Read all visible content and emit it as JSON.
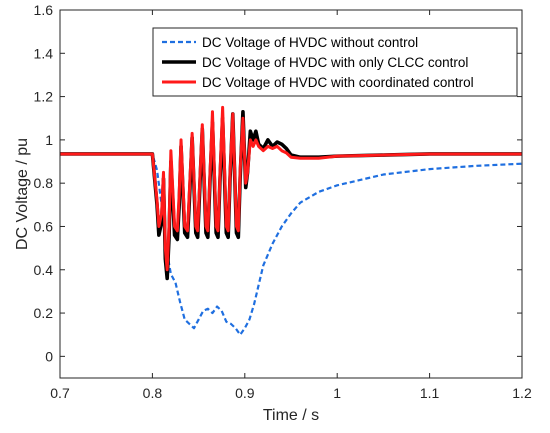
{
  "chart_data": {
    "type": "line",
    "title": "",
    "xlabel": "Time / s",
    "ylabel": "DC Voltage / pu",
    "xlim": [
      0.7,
      1.2
    ],
    "ylim": [
      -0.1,
      1.6
    ],
    "x_ticks": [
      "0.7",
      "0.8",
      "0.9",
      "1",
      "1.1",
      "1.2"
    ],
    "y_ticks": [
      "0",
      "0.2",
      "0.4",
      "0.6",
      "0.8",
      "1",
      "1.2",
      "1.4",
      "1.6"
    ],
    "grid": false,
    "legend_position": "top-right",
    "series": [
      {
        "name": "DC Voltage of HVDC without control",
        "color": "#1f6fe0",
        "style": "dashed",
        "points": [
          [
            0.7,
            0.935
          ],
          [
            0.8,
            0.935
          ],
          [
            0.805,
            0.86
          ],
          [
            0.81,
            0.7
          ],
          [
            0.815,
            0.5
          ],
          [
            0.82,
            0.38
          ],
          [
            0.825,
            0.34
          ],
          [
            0.83,
            0.25
          ],
          [
            0.835,
            0.17
          ],
          [
            0.84,
            0.15
          ],
          [
            0.845,
            0.13
          ],
          [
            0.85,
            0.17
          ],
          [
            0.855,
            0.21
          ],
          [
            0.86,
            0.22
          ],
          [
            0.865,
            0.2
          ],
          [
            0.87,
            0.23
          ],
          [
            0.875,
            0.21
          ],
          [
            0.88,
            0.16
          ],
          [
            0.885,
            0.15
          ],
          [
            0.89,
            0.13
          ],
          [
            0.895,
            0.1
          ],
          [
            0.9,
            0.13
          ],
          [
            0.905,
            0.17
          ],
          [
            0.91,
            0.24
          ],
          [
            0.915,
            0.33
          ],
          [
            0.92,
            0.42
          ],
          [
            0.93,
            0.52
          ],
          [
            0.94,
            0.6
          ],
          [
            0.95,
            0.66
          ],
          [
            0.96,
            0.71
          ],
          [
            0.98,
            0.76
          ],
          [
            1.0,
            0.79
          ],
          [
            1.05,
            0.84
          ],
          [
            1.1,
            0.865
          ],
          [
            1.15,
            0.88
          ],
          [
            1.2,
            0.89
          ]
        ]
      },
      {
        "name": "DC Voltage of HVDC with only CLCC control",
        "color": "#000000",
        "style": "solid",
        "points": [
          [
            0.7,
            0.935
          ],
          [
            0.8,
            0.935
          ],
          [
            0.805,
            0.7
          ],
          [
            0.807,
            0.56
          ],
          [
            0.81,
            0.62
          ],
          [
            0.812,
            0.82
          ],
          [
            0.814,
            0.45
          ],
          [
            0.816,
            0.36
          ],
          [
            0.818,
            0.55
          ],
          [
            0.82,
            0.9
          ],
          [
            0.824,
            0.56
          ],
          [
            0.827,
            0.54
          ],
          [
            0.829,
            0.7
          ],
          [
            0.831,
            0.97
          ],
          [
            0.835,
            0.57
          ],
          [
            0.838,
            0.55
          ],
          [
            0.84,
            0.72
          ],
          [
            0.843,
            1.01
          ],
          [
            0.847,
            0.57
          ],
          [
            0.849,
            0.55
          ],
          [
            0.851,
            0.75
          ],
          [
            0.854,
            1.05
          ],
          [
            0.858,
            0.57
          ],
          [
            0.86,
            0.55
          ],
          [
            0.862,
            0.78
          ],
          [
            0.865,
            1.08
          ],
          [
            0.869,
            0.57
          ],
          [
            0.871,
            0.55
          ],
          [
            0.873,
            0.8
          ],
          [
            0.876,
            1.1
          ],
          [
            0.88,
            0.57
          ],
          [
            0.882,
            0.55
          ],
          [
            0.884,
            0.82
          ],
          [
            0.887,
            1.12
          ],
          [
            0.891,
            0.57
          ],
          [
            0.893,
            0.55
          ],
          [
            0.895,
            0.83
          ],
          [
            0.898,
            1.13
          ],
          [
            0.901,
            0.78
          ],
          [
            0.903,
            0.85
          ],
          [
            0.906,
            1.04
          ],
          [
            0.909,
            1.0
          ],
          [
            0.912,
            1.04
          ],
          [
            0.915,
            0.98
          ],
          [
            0.92,
            0.96
          ],
          [
            0.925,
            1.0
          ],
          [
            0.93,
            0.97
          ],
          [
            0.935,
            0.99
          ],
          [
            0.94,
            0.98
          ],
          [
            0.945,
            0.96
          ],
          [
            0.95,
            0.93
          ],
          [
            0.96,
            0.92
          ],
          [
            0.98,
            0.92
          ],
          [
            1.0,
            0.925
          ],
          [
            1.05,
            0.93
          ],
          [
            1.1,
            0.935
          ],
          [
            1.2,
            0.935
          ]
        ]
      },
      {
        "name": "DC Voltage of HVDC with coordinated control",
        "color": "#ff1a1a",
        "style": "solid",
        "points": [
          [
            0.7,
            0.935
          ],
          [
            0.8,
            0.935
          ],
          [
            0.805,
            0.72
          ],
          [
            0.807,
            0.6
          ],
          [
            0.81,
            0.66
          ],
          [
            0.812,
            0.85
          ],
          [
            0.814,
            0.5
          ],
          [
            0.816,
            0.4
          ],
          [
            0.818,
            0.6
          ],
          [
            0.82,
            0.95
          ],
          [
            0.824,
            0.6
          ],
          [
            0.827,
            0.58
          ],
          [
            0.829,
            0.75
          ],
          [
            0.831,
            1.0
          ],
          [
            0.835,
            0.6
          ],
          [
            0.838,
            0.58
          ],
          [
            0.84,
            0.76
          ],
          [
            0.843,
            1.03
          ],
          [
            0.847,
            0.6
          ],
          [
            0.849,
            0.58
          ],
          [
            0.851,
            0.78
          ],
          [
            0.854,
            1.07
          ],
          [
            0.858,
            0.6
          ],
          [
            0.86,
            0.58
          ],
          [
            0.862,
            0.8
          ],
          [
            0.865,
            1.13
          ],
          [
            0.869,
            0.6
          ],
          [
            0.871,
            0.58
          ],
          [
            0.873,
            0.82
          ],
          [
            0.876,
            1.15
          ],
          [
            0.88,
            0.6
          ],
          [
            0.882,
            0.58
          ],
          [
            0.884,
            0.84
          ],
          [
            0.887,
            1.12
          ],
          [
            0.891,
            0.6
          ],
          [
            0.893,
            0.58
          ],
          [
            0.895,
            0.86
          ],
          [
            0.898,
            1.1
          ],
          [
            0.901,
            0.8
          ],
          [
            0.903,
            0.85
          ],
          [
            0.906,
            1.0
          ],
          [
            0.909,
            0.97
          ],
          [
            0.912,
            1.0
          ],
          [
            0.915,
            0.97
          ],
          [
            0.92,
            0.95
          ],
          [
            0.925,
            0.97
          ],
          [
            0.93,
            0.96
          ],
          [
            0.935,
            0.97
          ],
          [
            0.94,
            0.95
          ],
          [
            0.945,
            0.94
          ],
          [
            0.95,
            0.92
          ],
          [
            0.96,
            0.915
          ],
          [
            0.98,
            0.915
          ],
          [
            1.0,
            0.925
          ],
          [
            1.05,
            0.93
          ],
          [
            1.1,
            0.935
          ],
          [
            1.2,
            0.935
          ]
        ]
      }
    ]
  }
}
